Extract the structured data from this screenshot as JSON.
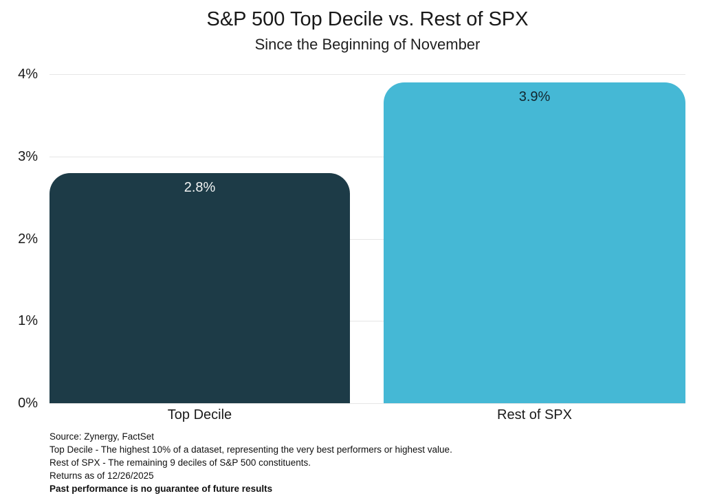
{
  "page": {
    "background_color": "#ffffff"
  },
  "chart_data": {
    "type": "bar",
    "title": "S&P 500 Top Decile vs. Rest of SPX",
    "subtitle": "Since the Beginning of November",
    "categories": [
      "Top Decile",
      "Rest of SPX"
    ],
    "values": [
      2.8,
      3.9
    ],
    "value_labels": [
      "2.8%",
      "3.9%"
    ],
    "bar_colors": [
      "#1d3b47",
      "#45b8d5"
    ],
    "value_label_colors": [
      "#f2f4f4",
      "#12262e"
    ],
    "xlabel": "",
    "ylabel": "",
    "ylim": [
      0,
      4
    ],
    "yticks": [
      {
        "value": 4,
        "label": "4%"
      },
      {
        "value": 3,
        "label": "3%"
      },
      {
        "value": 2,
        "label": "2%"
      },
      {
        "value": 1,
        "label": "1%"
      },
      {
        "value": 0,
        "label": "0%"
      }
    ],
    "grid": true,
    "gridline_color": "#e6e6e6",
    "legend_position": "none"
  },
  "footer": {
    "lines": [
      {
        "text": "Source: Zynergy, FactSet",
        "bold": false
      },
      {
        "text": "Top Decile - The highest 10% of a dataset, representing the very best performers or highest value.",
        "bold": false
      },
      {
        "text": "Rest of SPX - The remaining 9 deciles of S&P 500 constituents.",
        "bold": false
      },
      {
        "text": "Returns as of 12/26/2025",
        "bold": false
      },
      {
        "text": "Past performance is no guarantee of future results",
        "bold": true
      }
    ]
  }
}
